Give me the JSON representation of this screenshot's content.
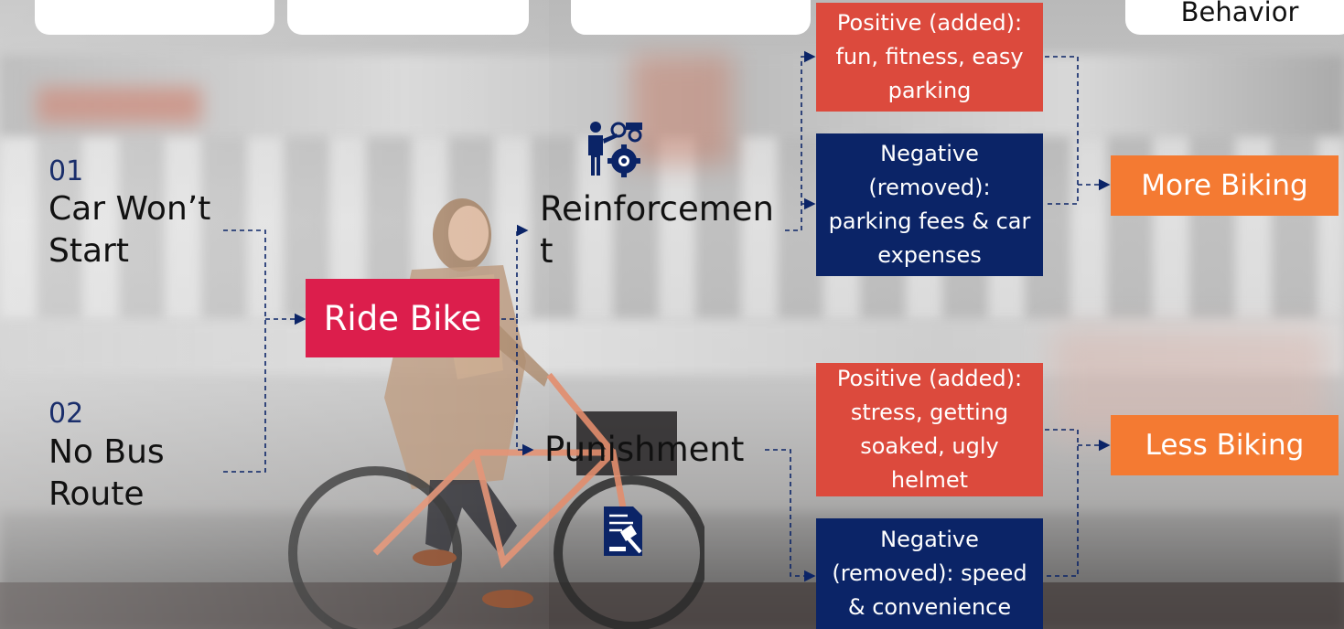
{
  "header": {
    "top_right_label": "Behavior"
  },
  "causes": [
    {
      "number": "01",
      "label": "Car Won’t Start"
    },
    {
      "number": "02",
      "label": "No Bus Route"
    }
  ],
  "behavior": {
    "label": "Ride Bike"
  },
  "branches": {
    "reinforcement": {
      "label": "Reinforcement",
      "icon": "presenter-gear-icon",
      "positive": "Positive (added): fun, fitness, easy parking",
      "negative": "Negative (removed): parking fees & car expenses",
      "outcome": "More Biking"
    },
    "punishment": {
      "label": "Punishment",
      "icon": "document-gavel-icon",
      "positive": "Positive (added): stress, getting soaked, ugly helmet",
      "negative": "Negative (removed): speed & convenience",
      "outcome": "Less Biking"
    }
  },
  "colors": {
    "ride_bike": "#dc1e4c",
    "positive": "#dc4a3d",
    "negative": "#0b2467",
    "outcome": "#f47a32",
    "connector": "#0b2467"
  }
}
